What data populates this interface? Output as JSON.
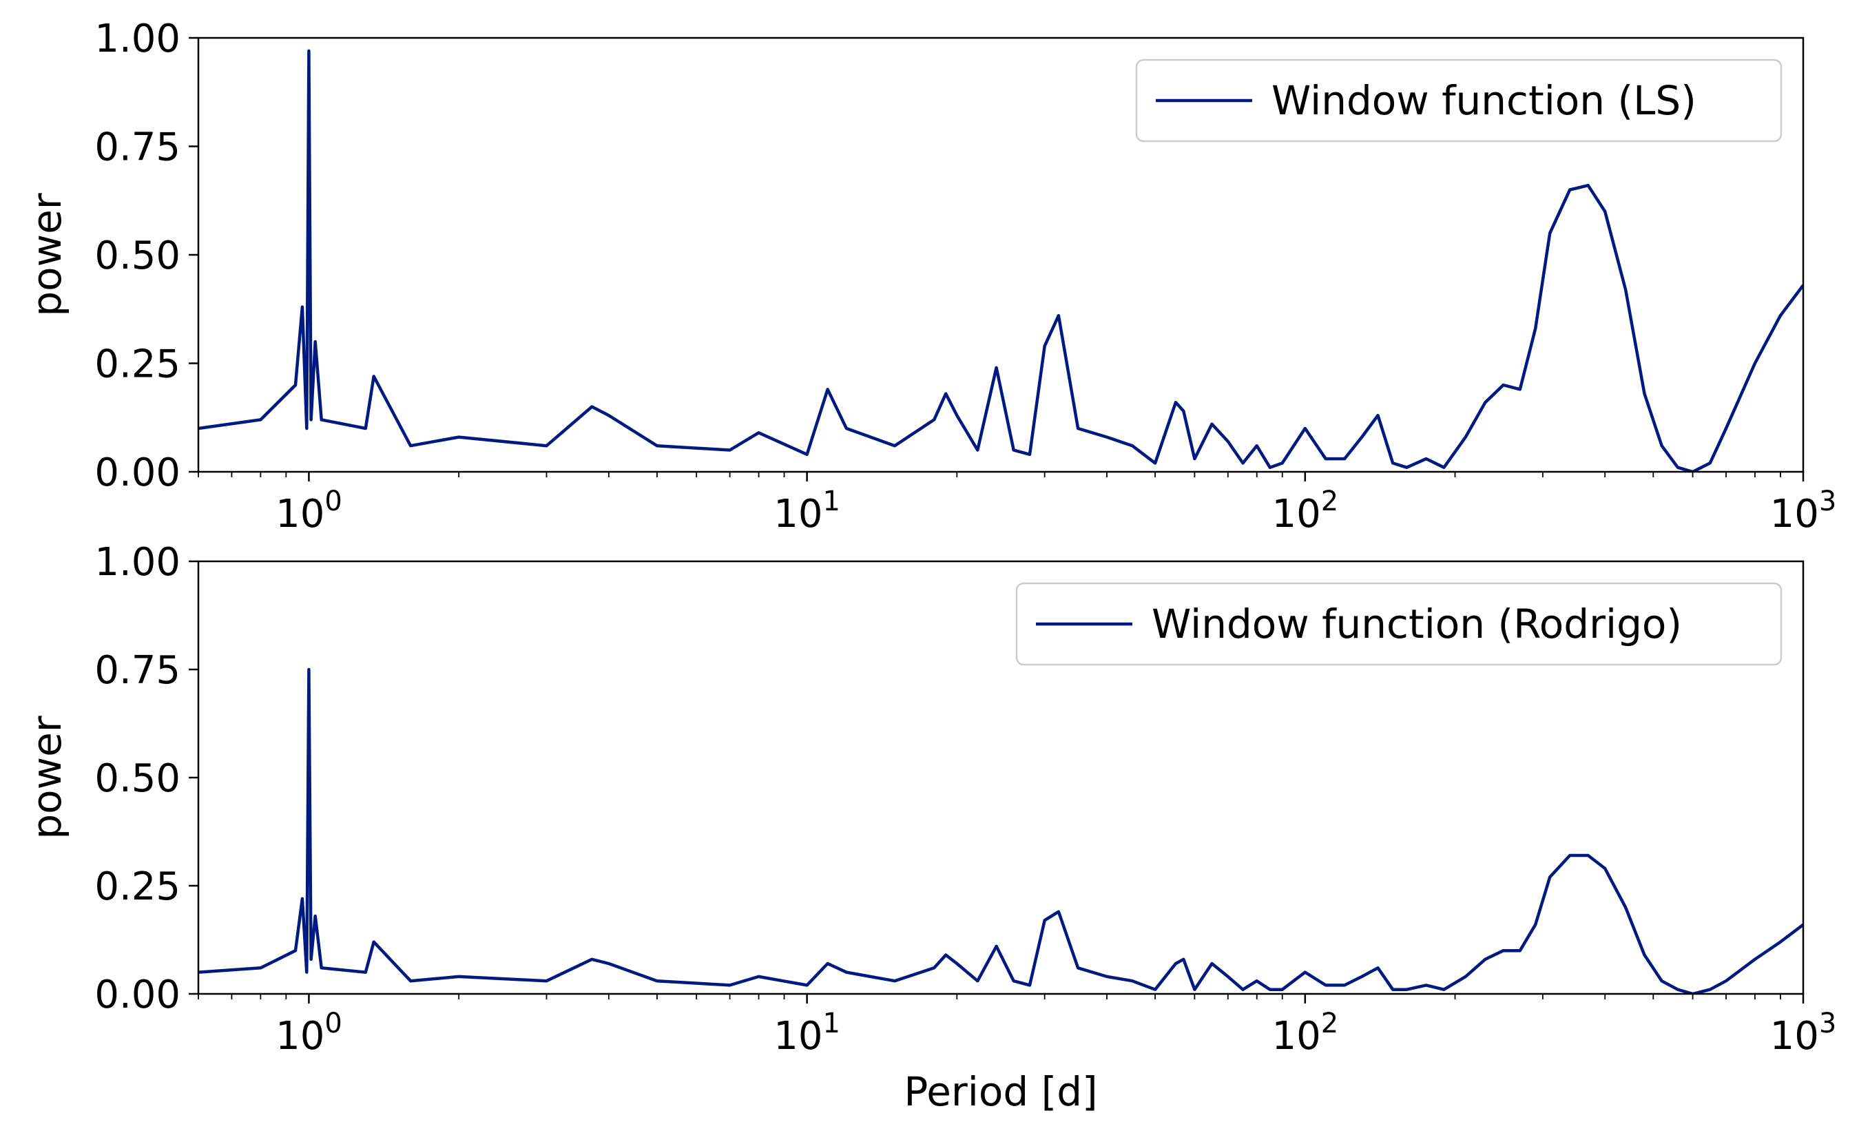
{
  "figure": {
    "xlabel": "Period [d]",
    "line_color": "#001a80"
  },
  "chart_data": [
    {
      "type": "line",
      "title": "",
      "xlabel": "",
      "ylabel": "power",
      "xscale": "log",
      "xlim": [
        0.6,
        1000
      ],
      "ylim": [
        0,
        1
      ],
      "yticks": [
        "0.00",
        "0.25",
        "0.50",
        "0.75",
        "1.00"
      ],
      "xtick_base": "10",
      "xtick_exponents": [
        "0",
        "1",
        "2",
        "3"
      ],
      "grid": false,
      "legend": "top-right",
      "series": [
        {
          "name": "Window function (LS)",
          "color": "#001a80",
          "x": [
            0.6,
            0.8,
            0.94,
            0.97,
            0.99,
            1.0,
            1.01,
            1.03,
            1.06,
            1.3,
            1.35,
            1.6,
            2.0,
            3.0,
            3.7,
            4.0,
            5.0,
            7.0,
            8.0,
            10.0,
            11.0,
            12.0,
            15.0,
            18.0,
            19.0,
            20.0,
            22.0,
            24.0,
            26.0,
            28.0,
            30.0,
            32.0,
            35.0,
            40.0,
            45.0,
            50.0,
            55.0,
            57.0,
            60.0,
            65.0,
            70.0,
            75.0,
            80.0,
            85.0,
            90.0,
            100.0,
            110.0,
            120.0,
            130.0,
            140.0,
            150.0,
            160.0,
            175.0,
            190.0,
            210.0,
            230.0,
            250.0,
            270.0,
            290.0,
            310.0,
            340.0,
            370.0,
            400.0,
            440.0,
            480.0,
            520.0,
            560.0,
            600.0,
            650.0,
            700.0,
            800.0,
            900.0,
            1000.0
          ],
          "y": [
            0.1,
            0.12,
            0.2,
            0.38,
            0.1,
            0.97,
            0.12,
            0.3,
            0.12,
            0.1,
            0.22,
            0.06,
            0.08,
            0.06,
            0.15,
            0.13,
            0.06,
            0.05,
            0.09,
            0.04,
            0.19,
            0.1,
            0.06,
            0.12,
            0.18,
            0.13,
            0.05,
            0.24,
            0.05,
            0.04,
            0.29,
            0.36,
            0.1,
            0.08,
            0.06,
            0.02,
            0.16,
            0.14,
            0.03,
            0.11,
            0.07,
            0.02,
            0.06,
            0.01,
            0.02,
            0.1,
            0.03,
            0.03,
            0.08,
            0.13,
            0.02,
            0.01,
            0.03,
            0.01,
            0.08,
            0.16,
            0.2,
            0.19,
            0.33,
            0.55,
            0.65,
            0.66,
            0.6,
            0.42,
            0.18,
            0.06,
            0.01,
            0.0,
            0.02,
            0.1,
            0.25,
            0.36,
            0.43
          ]
        }
      ]
    },
    {
      "type": "line",
      "title": "",
      "xlabel": "Period [d]",
      "ylabel": "power",
      "xscale": "log",
      "xlim": [
        0.6,
        1000
      ],
      "ylim": [
        0,
        1
      ],
      "yticks": [
        "0.00",
        "0.25",
        "0.50",
        "0.75",
        "1.00"
      ],
      "xtick_base": "10",
      "xtick_exponents": [
        "0",
        "1",
        "2",
        "3"
      ],
      "grid": false,
      "legend": "top-right",
      "series": [
        {
          "name": "Window function (Rodrigo)",
          "color": "#001a80",
          "x": [
            0.6,
            0.8,
            0.94,
            0.97,
            0.99,
            1.0,
            1.01,
            1.03,
            1.06,
            1.3,
            1.35,
            1.6,
            2.0,
            3.0,
            3.7,
            4.0,
            5.0,
            7.0,
            8.0,
            10.0,
            11.0,
            12.0,
            15.0,
            18.0,
            19.0,
            20.0,
            22.0,
            24.0,
            26.0,
            28.0,
            30.0,
            32.0,
            35.0,
            40.0,
            45.0,
            50.0,
            55.0,
            57.0,
            60.0,
            65.0,
            70.0,
            75.0,
            80.0,
            85.0,
            90.0,
            100.0,
            110.0,
            120.0,
            130.0,
            140.0,
            150.0,
            160.0,
            175.0,
            190.0,
            210.0,
            230.0,
            250.0,
            270.0,
            290.0,
            310.0,
            340.0,
            370.0,
            400.0,
            440.0,
            480.0,
            520.0,
            560.0,
            600.0,
            650.0,
            700.0,
            800.0,
            900.0,
            1000.0
          ],
          "y": [
            0.05,
            0.06,
            0.1,
            0.22,
            0.05,
            0.75,
            0.08,
            0.18,
            0.06,
            0.05,
            0.12,
            0.03,
            0.04,
            0.03,
            0.08,
            0.07,
            0.03,
            0.02,
            0.04,
            0.02,
            0.07,
            0.05,
            0.03,
            0.06,
            0.09,
            0.07,
            0.03,
            0.11,
            0.03,
            0.02,
            0.17,
            0.19,
            0.06,
            0.04,
            0.03,
            0.01,
            0.07,
            0.08,
            0.01,
            0.07,
            0.04,
            0.01,
            0.03,
            0.01,
            0.01,
            0.05,
            0.02,
            0.02,
            0.04,
            0.06,
            0.01,
            0.01,
            0.02,
            0.01,
            0.04,
            0.08,
            0.1,
            0.1,
            0.16,
            0.27,
            0.32,
            0.32,
            0.29,
            0.2,
            0.09,
            0.03,
            0.01,
            0.0,
            0.01,
            0.03,
            0.08,
            0.12,
            0.16
          ]
        }
      ]
    }
  ]
}
